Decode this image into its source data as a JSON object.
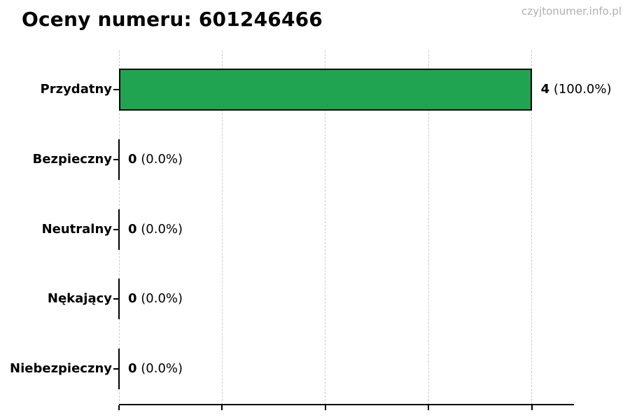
{
  "header": {
    "title": "Oceny numeru: 601246466"
  },
  "watermark": {
    "text": "czyjtonumer.info.pl"
  },
  "colors": {
    "background": "#ffffff",
    "bar_fill": "#20a451",
    "bar_edge": "#000000",
    "gridline": "#cccccc",
    "axis": "#000000",
    "title_text": "#000000",
    "watermark_text": "#b0b0b0"
  },
  "chart_data": {
    "type": "bar",
    "orientation": "horizontal",
    "title": "Oceny numeru: 601246466",
    "categories": [
      "Przydatny",
      "Bezpieczny",
      "Neutralny",
      "Nękający",
      "Niebezpieczny"
    ],
    "values": [
      4,
      0,
      0,
      0,
      0
    ],
    "value_labels": [
      {
        "num": "4",
        "pct": "(100.0%)"
      },
      {
        "num": "0",
        "pct": "(0.0%)"
      },
      {
        "num": "0",
        "pct": "(0.0%)"
      },
      {
        "num": "0",
        "pct": "(0.0%)"
      },
      {
        "num": "0",
        "pct": "(0.0%)"
      }
    ],
    "xlim": [
      0,
      4.41
    ],
    "xticks": [
      0,
      1,
      2,
      3,
      4
    ],
    "xtick_labels": [],
    "grid": true,
    "legend": false
  }
}
